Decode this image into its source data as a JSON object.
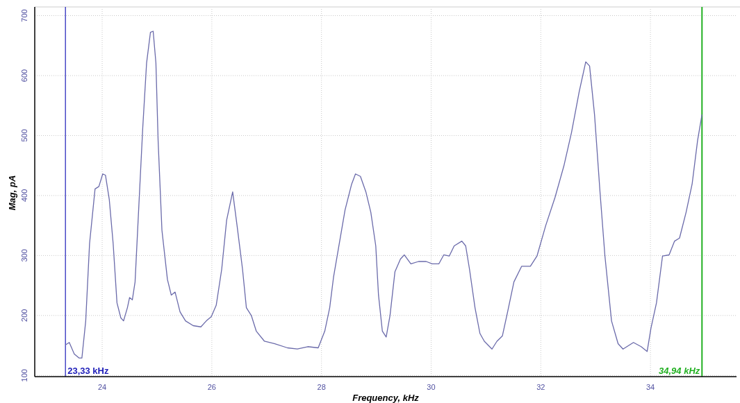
{
  "chart_data": {
    "type": "line",
    "xlabel": "Frequency, kHz",
    "ylabel": "Mag, pA",
    "xlim": [
      22.77,
      35.57
    ],
    "xticks": [
      24,
      26,
      28,
      30,
      32,
      34
    ],
    "ylim": [
      98,
      711
    ],
    "yticks": [
      100,
      200,
      300,
      400,
      500,
      600,
      700
    ],
    "grid": true,
    "line_style": "solid",
    "marker": "none",
    "ref_lines": [
      {
        "axis": "x",
        "value": 23.33,
        "label": "23,33 kHz",
        "color": "#1c1cb8"
      },
      {
        "axis": "x",
        "value": 34.94,
        "label": "34,94 kHz",
        "color": "#22b022"
      }
    ],
    "series": [
      {
        "color": "#6a6aaa",
        "x": [
          23.33,
          23.4,
          23.49,
          23.58,
          23.63,
          23.7,
          23.77,
          23.87,
          23.94,
          24.01,
          24.06,
          24.13,
          24.2,
          24.27,
          24.34,
          24.39,
          24.46,
          24.5,
          24.55,
          24.6,
          24.67,
          24.74,
          24.81,
          24.88,
          24.93,
          24.98,
          25.02,
          25.09,
          25.19,
          25.26,
          25.33,
          25.42,
          25.52,
          25.66,
          25.8,
          25.9,
          25.99,
          26.08,
          26.18,
          26.27,
          26.38,
          26.46,
          26.56,
          26.63,
          26.72,
          26.81,
          26.96,
          27.14,
          27.38,
          27.56,
          27.75,
          27.94,
          28.06,
          28.15,
          28.22,
          28.31,
          28.43,
          28.55,
          28.62,
          28.71,
          28.81,
          28.9,
          28.99,
          29.04,
          29.11,
          29.18,
          29.25,
          29.34,
          29.44,
          29.51,
          29.63,
          29.77,
          29.91,
          30.02,
          30.14,
          30.23,
          30.33,
          30.42,
          30.56,
          30.63,
          30.7,
          30.8,
          30.89,
          30.97,
          31.11,
          31.2,
          31.3,
          31.39,
          31.51,
          31.65,
          31.81,
          31.93,
          32.09,
          32.26,
          32.42,
          32.56,
          32.7,
          32.82,
          32.89,
          32.98,
          33.08,
          33.17,
          33.29,
          33.41,
          33.5,
          33.69,
          33.83,
          33.94,
          34.01,
          34.11,
          34.22,
          34.34,
          34.44,
          34.53,
          34.65,
          34.76,
          34.86,
          34.94
        ],
        "values": [
          151,
          155,
          136,
          129,
          129,
          191,
          320,
          411,
          415,
          436,
          434,
          393,
          320,
          221,
          196,
          191,
          213,
          230,
          226,
          256,
          385,
          513,
          621,
          672,
          674,
          621,
          492,
          342,
          260,
          234,
          239,
          206,
          191,
          183,
          181,
          191,
          198,
          217,
          277,
          359,
          406,
          350,
          277,
          213,
          200,
          174,
          157,
          153,
          146,
          144,
          148,
          146,
          174,
          213,
          264,
          312,
          376,
          419,
          436,
          432,
          406,
          372,
          316,
          234,
          174,
          164,
          200,
          273,
          294,
          301,
          286,
          290,
          290,
          286,
          286,
          301,
          299,
          316,
          324,
          316,
          277,
          213,
          170,
          157,
          144,
          157,
          166,
          204,
          256,
          282,
          282,
          299,
          350,
          397,
          449,
          505,
          573,
          623,
          616,
          535,
          406,
          299,
          191,
          153,
          144,
          155,
          148,
          140,
          179,
          221,
          299,
          301,
          324,
          329,
          372,
          419,
          492,
          535
        ]
      }
    ]
  }
}
